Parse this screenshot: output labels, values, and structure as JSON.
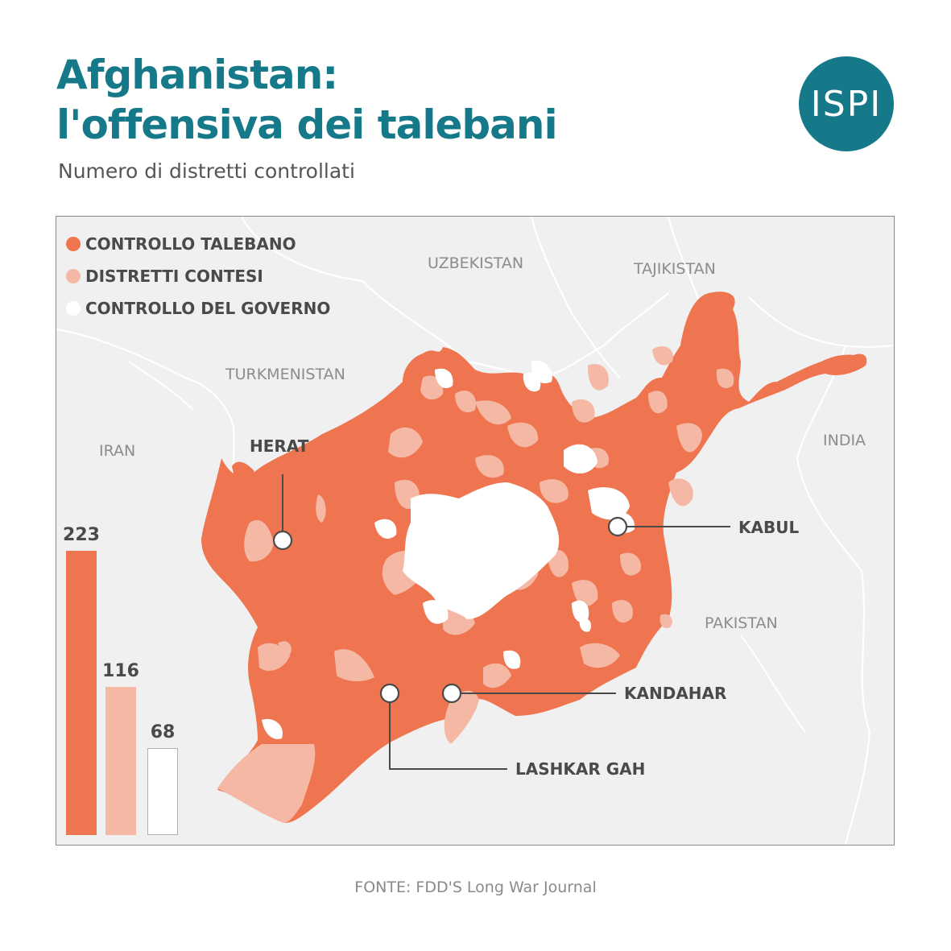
{
  "header": {
    "title_line1": "Afghanistan:",
    "title_line2": "l'offensiva dei talebani",
    "subtitle": "Numero di distretti controllati",
    "logo_text": "ISPI"
  },
  "colors": {
    "accent": "#16798a",
    "taliban": "#ef7550",
    "contested": "#f4b8a4",
    "government": "#ffffff",
    "map_background": "#f0f0f0"
  },
  "legend": [
    {
      "label": "CONTROLLO TALEBANO",
      "color": "#ef7550"
    },
    {
      "label": "DISTRETTI CONTESI",
      "color": "#f4b8a4"
    },
    {
      "label": "CONTROLLO DEL GOVERNO",
      "color": "#ffffff"
    }
  ],
  "countries": {
    "uzbekistan": "UZBEKISTAN",
    "tajikistan": "TAJIKISTAN",
    "turkmenistan": "TURKMENISTAN",
    "iran": "IRAN",
    "india": "INDIA",
    "pakistan": "PAKISTAN"
  },
  "cities": {
    "herat": "HERAT",
    "kabul": "KABUL",
    "kandahar": "KANDAHAR",
    "lashkar_gah": "LASHKAR GAH"
  },
  "chart_data": {
    "type": "bar",
    "categories": [
      "CONTROLLO TALEBANO",
      "DISTRETTI CONTESI",
      "CONTROLLO DEL GOVERNO"
    ],
    "values": [
      223,
      116,
      68
    ],
    "ylim": [
      0,
      223
    ]
  },
  "source": "FONTE:  FDD'S Long War Journal"
}
